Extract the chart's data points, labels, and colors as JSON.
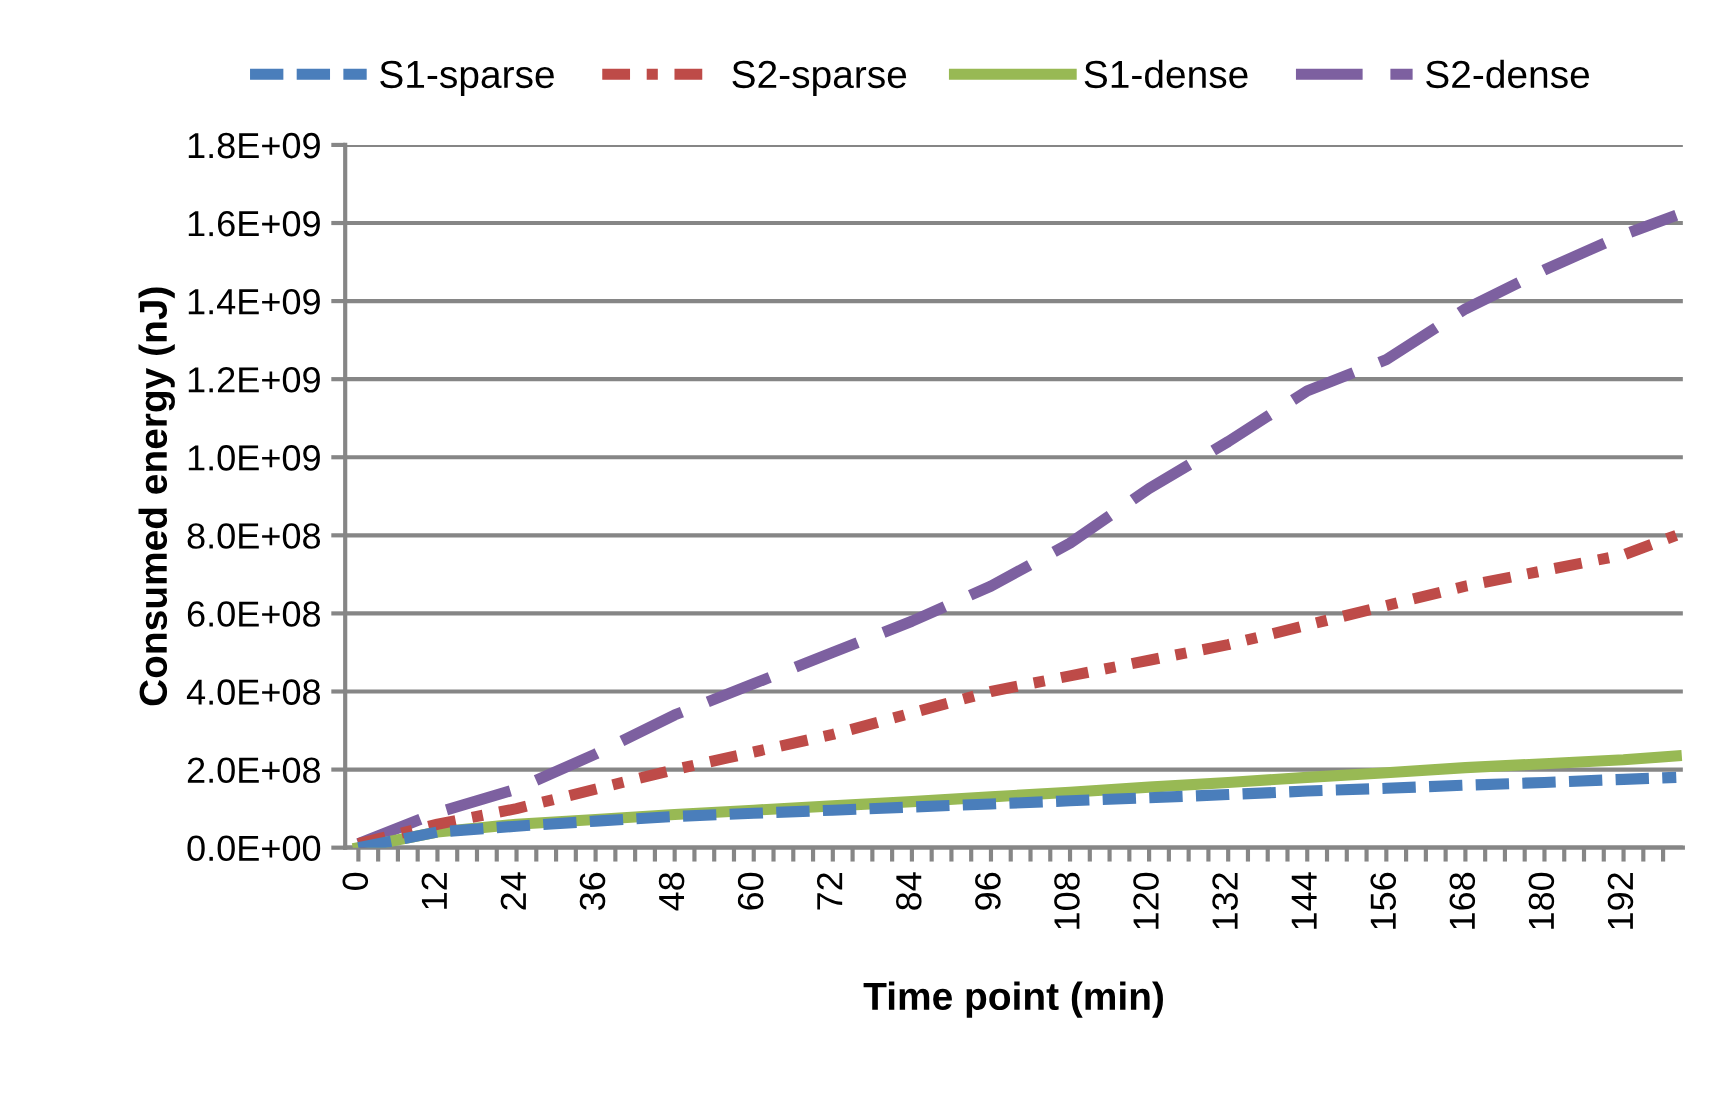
{
  "chart_data": {
    "type": "line",
    "xlabel": "Time point (min)",
    "ylabel": "Consumed energy (nJ)",
    "xlim": [
      -2,
      201
    ],
    "ylim": [
      0,
      1800000000
    ],
    "yticks": [
      {
        "value": 0,
        "label": "0.0E+00"
      },
      {
        "value": 200000000,
        "label": "2.0E+08"
      },
      {
        "value": 400000000,
        "label": "4.0E+08"
      },
      {
        "value": 600000000,
        "label": "6.0E+08"
      },
      {
        "value": 800000000,
        "label": "8.0E+08"
      },
      {
        "value": 1000000000,
        "label": "1.0E+09"
      },
      {
        "value": 1200000000,
        "label": "1.2E+09"
      },
      {
        "value": 1400000000,
        "label": "1.4E+09"
      },
      {
        "value": 1600000000,
        "label": "1.6E+09"
      },
      {
        "value": 1800000000,
        "label": "1.8E+09"
      }
    ],
    "xticks": [
      0,
      {
        "value": 3,
        "label": null
      },
      {
        "value": 6,
        "label": null
      },
      {
        "value": 9,
        "label": null
      },
      12,
      {
        "value": 15,
        "label": null
      },
      {
        "value": 18,
        "label": null
      },
      {
        "value": 21,
        "label": null
      },
      24,
      {
        "value": 27,
        "label": null
      },
      {
        "value": 30,
        "label": null
      },
      {
        "value": 33,
        "label": null
      },
      36,
      {
        "value": 39,
        "label": null
      },
      {
        "value": 42,
        "label": null
      },
      {
        "value": 45,
        "label": null
      },
      48,
      {
        "value": 51,
        "label": null
      },
      {
        "value": 54,
        "label": null
      },
      {
        "value": 57,
        "label": null
      },
      60,
      {
        "value": 63,
        "label": null
      },
      {
        "value": 66,
        "label": null
      },
      {
        "value": 69,
        "label": null
      },
      72,
      {
        "value": 75,
        "label": null
      },
      {
        "value": 78,
        "label": null
      },
      {
        "value": 81,
        "label": null
      },
      84,
      {
        "value": 87,
        "label": null
      },
      {
        "value": 90,
        "label": null
      },
      {
        "value": 93,
        "label": null
      },
      96,
      {
        "value": 99,
        "label": null
      },
      {
        "value": 102,
        "label": null
      },
      {
        "value": 105,
        "label": null
      },
      108,
      {
        "value": 111,
        "label": null
      },
      {
        "value": 114,
        "label": null
      },
      {
        "value": 117,
        "label": null
      },
      120,
      {
        "value": 123,
        "label": null
      },
      {
        "value": 126,
        "label": null
      },
      {
        "value": 129,
        "label": null
      },
      132,
      {
        "value": 135,
        "label": null
      },
      {
        "value": 138,
        "label": null
      },
      {
        "value": 141,
        "label": null
      },
      144,
      {
        "value": 147,
        "label": null
      },
      {
        "value": 150,
        "label": null
      },
      {
        "value": 153,
        "label": null
      },
      156,
      {
        "value": 159,
        "label": null
      },
      {
        "value": 162,
        "label": null
      },
      {
        "value": 165,
        "label": null
      },
      168,
      {
        "value": 171,
        "label": null
      },
      {
        "value": 174,
        "label": null
      },
      {
        "value": 177,
        "label": null
      },
      180,
      {
        "value": 183,
        "label": null
      },
      {
        "value": 186,
        "label": null
      },
      {
        "value": 189,
        "label": null
      },
      192,
      {
        "value": 195,
        "label": null
      },
      {
        "value": 198,
        "label": null
      }
    ],
    "x": [
      0,
      12,
      24,
      36,
      48,
      60,
      72,
      84,
      96,
      108,
      120,
      132,
      144,
      156,
      168,
      180,
      192,
      200
    ],
    "grid": "y",
    "legend": "top",
    "marker": "none",
    "series": [
      {
        "name": "S1-sparse",
        "color": "#4a7ebb",
        "line_style": "dashed",
        "values": [
          0,
          40000000,
          55000000,
          68000000,
          80000000,
          88000000,
          96000000,
          104000000,
          112000000,
          120000000,
          128000000,
          136000000,
          145000000,
          152000000,
          160000000,
          167000000,
          175000000,
          180000000
        ]
      },
      {
        "name": "S2-sparse",
        "color": "#be4b48",
        "line_style": "dashdot",
        "values": [
          10000000,
          60000000,
          100000000,
          150000000,
          200000000,
          245000000,
          290000000,
          345000000,
          400000000,
          440000000,
          480000000,
          520000000,
          570000000,
          620000000,
          670000000,
          710000000,
          750000000,
          800000000
        ]
      },
      {
        "name": "S1-dense",
        "color": "#98b954",
        "line_style": "solid",
        "values": [
          0,
          40000000,
          60000000,
          72000000,
          85000000,
          96000000,
          107000000,
          118000000,
          130000000,
          142000000,
          155000000,
          167000000,
          180000000,
          192000000,
          205000000,
          215000000,
          225000000,
          235000000
        ]
      },
      {
        "name": "S2-dense",
        "color": "#7d60a0",
        "line_style": "longdash",
        "values": [
          10000000,
          90000000,
          150000000,
          240000000,
          340000000,
          420000000,
          500000000,
          580000000,
          670000000,
          780000000,
          920000000,
          1040000000,
          1170000000,
          1250000000,
          1380000000,
          1480000000,
          1570000000,
          1620000000
        ]
      }
    ]
  }
}
